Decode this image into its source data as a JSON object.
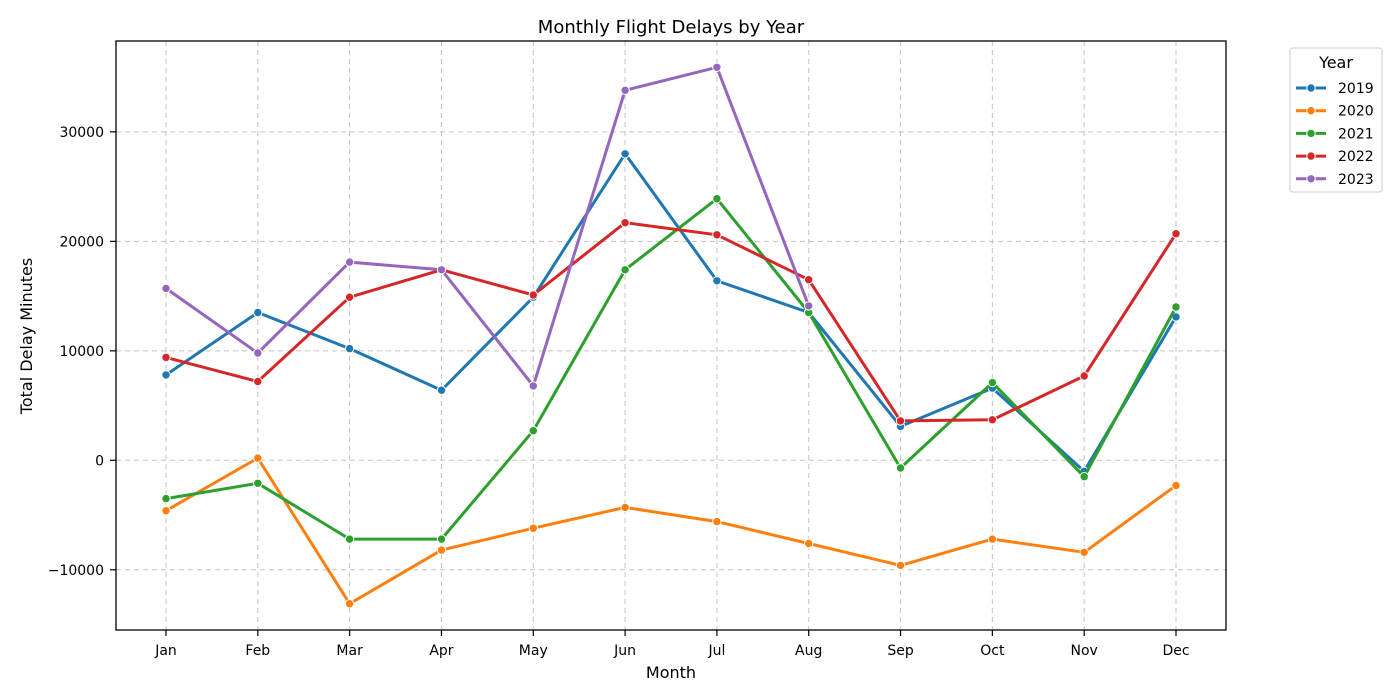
{
  "chart_data": {
    "type": "line",
    "title": "Monthly Flight Delays by Year",
    "xlabel": "Month",
    "ylabel": "Total Delay Minutes",
    "categories": [
      "Jan",
      "Feb",
      "Mar",
      "Apr",
      "May",
      "Jun",
      "Jul",
      "Aug",
      "Sep",
      "Oct",
      "Nov",
      "Dec"
    ],
    "ylim": [
      -15500,
      38300
    ],
    "yticks": [
      -10000,
      0,
      10000,
      20000,
      30000
    ],
    "grid": true,
    "legend": {
      "title": "Year",
      "placement": "outside-top-right"
    },
    "series": [
      {
        "name": "2019",
        "color": "#1f77b4",
        "values": [
          7800,
          13500,
          10200,
          6400,
          14900,
          28000,
          16400,
          13500,
          3100,
          6600,
          -1000,
          13100
        ]
      },
      {
        "name": "2020",
        "color": "#ff7f0e",
        "values": [
          -4600,
          200,
          -13100,
          -8200,
          -6200,
          -4300,
          -5600,
          -7600,
          -9600,
          -7200,
          -8400,
          -2300
        ]
      },
      {
        "name": "2021",
        "color": "#2ca02c",
        "values": [
          -3500,
          -2100,
          -7200,
          -7200,
          2700,
          17400,
          23900,
          13500,
          -700,
          7100,
          -1500,
          14000
        ]
      },
      {
        "name": "2022",
        "color": "#d62728",
        "values": [
          9400,
          7200,
          14900,
          17400,
          15100,
          21700,
          20600,
          16500,
          3600,
          3700,
          7700,
          20700
        ]
      },
      {
        "name": "2023",
        "color": "#9467bd",
        "values": [
          15700,
          9800,
          18100,
          17400,
          6800,
          33800,
          35900,
          14100,
          null,
          null,
          null,
          null
        ]
      }
    ]
  }
}
